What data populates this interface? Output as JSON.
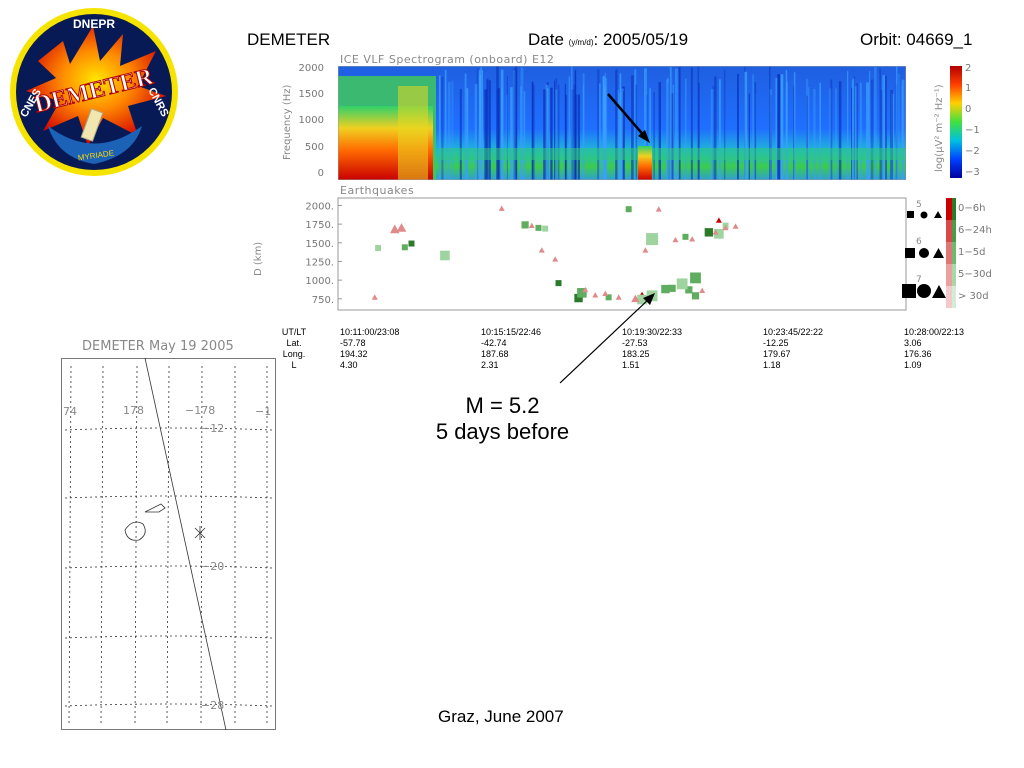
{
  "header": {
    "mission": "DEMETER",
    "date_label": "Date",
    "date_sub": "(y/m/d)",
    "date_value": ": 2005/05/19",
    "orbit": "Orbit: 04669_1"
  },
  "logo": {
    "top_text": "DNEPR",
    "main_text": "DEMETER",
    "left_text": "CNES",
    "right_text": "CNRS",
    "bottom_text": "MYRIADE"
  },
  "spectrogram": {
    "title": "ICE VLF Spectrogram (onboard) E12",
    "ylabel": "Frequency (Hz)",
    "yticks": [
      "2000",
      "1500",
      "1000",
      "500",
      "0"
    ],
    "colorbar_label": "log(µV² m⁻² Hz⁻¹)",
    "colorbar_ticks": [
      "2",
      "1",
      "0",
      "−1",
      "−2",
      "−3"
    ]
  },
  "chart_data": {
    "type": "scatter",
    "title": "Earthquakes",
    "ylabel": "D (km)",
    "ylim": [
      600,
      2100
    ],
    "yticks": [
      "2000.",
      "1750.",
      "1500.",
      "1250.",
      "1000.",
      "750."
    ],
    "x_unit": "minutes after 10:11:00 UT",
    "xlim": [
      0,
      17
    ],
    "series": [
      {
        "name": "0−6h",
        "color": "#cc0000",
        "points": [
          {
            "x": 9.1,
            "y": 790,
            "m": 5.2,
            "shape": "triangle"
          },
          {
            "x": 11.4,
            "y": 1800,
            "m": 5.0,
            "shape": "triangle"
          }
        ]
      },
      {
        "name": "6−24h",
        "color": "#2a7a2a",
        "points": [
          {
            "x": 2.2,
            "y": 1490,
            "m": 5.0,
            "shape": "square"
          },
          {
            "x": 6.6,
            "y": 960,
            "m": 5.0,
            "shape": "square"
          },
          {
            "x": 11.1,
            "y": 1640,
            "m": 5.2,
            "shape": "square"
          },
          {
            "x": 7.2,
            "y": 760,
            "m": 5.2,
            "shape": "square"
          }
        ]
      },
      {
        "name": "1−5d",
        "color": "#5fae5f",
        "points": [
          {
            "x": 2.0,
            "y": 1440,
            "m": 5.0,
            "shape": "square"
          },
          {
            "x": 5.6,
            "y": 1740,
            "m": 5.1,
            "shape": "square"
          },
          {
            "x": 6.0,
            "y": 1700,
            "m": 5.0,
            "shape": "square"
          },
          {
            "x": 7.3,
            "y": 830,
            "m": 5.3,
            "shape": "square"
          },
          {
            "x": 8.1,
            "y": 770,
            "m": 5.0,
            "shape": "square"
          },
          {
            "x": 9.8,
            "y": 880,
            "m": 5.2,
            "shape": "square"
          },
          {
            "x": 10.0,
            "y": 890,
            "m": 5.1,
            "shape": "square"
          },
          {
            "x": 10.5,
            "y": 870,
            "m": 5.1,
            "shape": "square"
          },
          {
            "x": 10.7,
            "y": 1030,
            "m": 5.4,
            "shape": "square"
          },
          {
            "x": 10.7,
            "y": 790,
            "m": 5.1,
            "shape": "square"
          },
          {
            "x": 10.4,
            "y": 1580,
            "m": 5.0,
            "shape": "square"
          },
          {
            "x": 8.7,
            "y": 1950,
            "m": 5.0,
            "shape": "square"
          }
        ]
      },
      {
        "name": "5−30d",
        "color": "#9fd39f",
        "points": [
          {
            "x": 1.2,
            "y": 1430,
            "m": 5.0,
            "shape": "square"
          },
          {
            "x": 3.2,
            "y": 1330,
            "m": 5.3,
            "shape": "square"
          },
          {
            "x": 6.2,
            "y": 1690,
            "m": 5.0,
            "shape": "square"
          },
          {
            "x": 9.1,
            "y": 740,
            "m": 5.3,
            "shape": "square"
          },
          {
            "x": 9.4,
            "y": 790,
            "m": 5.4,
            "shape": "square"
          },
          {
            "x": 9.4,
            "y": 1550,
            "m": 5.5,
            "shape": "square"
          },
          {
            "x": 10.3,
            "y": 950,
            "m": 5.4,
            "shape": "square"
          },
          {
            "x": 11.4,
            "y": 1620,
            "m": 5.3,
            "shape": "square"
          },
          {
            "x": 11.6,
            "y": 1730,
            "m": 5.0,
            "shape": "square"
          }
        ]
      },
      {
        "name": "> 30d",
        "color": "#e08a8a",
        "points": [
          {
            "x": 1.1,
            "y": 770,
            "m": 5.0,
            "shape": "triangle"
          },
          {
            "x": 1.7,
            "y": 1680,
            "m": 5.3,
            "shape": "triangle"
          },
          {
            "x": 1.9,
            "y": 1700,
            "m": 5.3,
            "shape": "triangle"
          },
          {
            "x": 4.9,
            "y": 1960,
            "m": 5.0,
            "shape": "triangle"
          },
          {
            "x": 5.8,
            "y": 1730,
            "m": 5.0,
            "shape": "triangle"
          },
          {
            "x": 6.1,
            "y": 1400,
            "m": 5.0,
            "shape": "triangle"
          },
          {
            "x": 6.5,
            "y": 1280,
            "m": 5.0,
            "shape": "triangle"
          },
          {
            "x": 7.4,
            "y": 870,
            "m": 5.0,
            "shape": "triangle"
          },
          {
            "x": 7.7,
            "y": 800,
            "m": 5.0,
            "shape": "triangle"
          },
          {
            "x": 8.0,
            "y": 820,
            "m": 5.0,
            "shape": "triangle"
          },
          {
            "x": 8.4,
            "y": 770,
            "m": 5.0,
            "shape": "triangle"
          },
          {
            "x": 8.9,
            "y": 750,
            "m": 5.2,
            "shape": "triangle"
          },
          {
            "x": 9.2,
            "y": 1400,
            "m": 5.0,
            "shape": "triangle"
          },
          {
            "x": 9.6,
            "y": 1950,
            "m": 5.0,
            "shape": "triangle"
          },
          {
            "x": 10.1,
            "y": 1540,
            "m": 5.0,
            "shape": "triangle"
          },
          {
            "x": 10.6,
            "y": 1550,
            "m": 5.0,
            "shape": "triangle"
          },
          {
            "x": 10.9,
            "y": 860,
            "m": 5.0,
            "shape": "triangle"
          },
          {
            "x": 11.3,
            "y": 1640,
            "m": 5.0,
            "shape": "triangle"
          },
          {
            "x": 11.6,
            "y": 1700,
            "m": 5.0,
            "shape": "triangle"
          },
          {
            "x": 11.9,
            "y": 1720,
            "m": 5.0,
            "shape": "triangle"
          }
        ]
      }
    ],
    "magnitude_legend": [
      "5",
      "6",
      "7"
    ],
    "age_legend": [
      "0−6h",
      "6−24h",
      "1−5d",
      "5−30d",
      "> 30d"
    ]
  },
  "orbit_info": {
    "row_labels": [
      "UT/LT",
      "Lat.",
      "Long.",
      "L"
    ],
    "columns": [
      [
        "10:11:00/23:08",
        "-57.78",
        "194.32",
        "4.30"
      ],
      [
        "10:15:15/22:46",
        "-42.74",
        "187.68",
        "2.31"
      ],
      [
        "10:19:30/22:33",
        "-27.53",
        "183.25",
        "1.51"
      ],
      [
        "10:23:45/22:22",
        "-12.25",
        "179.67",
        "1.18"
      ],
      [
        "10:28:00/22:13",
        "3.06",
        "176.36",
        "1.09"
      ]
    ]
  },
  "annotation": {
    "line1": "M = 5.2",
    "line2": "5 days before"
  },
  "map": {
    "title": "DEMETER May 19 2005",
    "lon_labels": [
      "74",
      "178",
      "−178",
      "−1"
    ],
    "lat_labels": [
      "−12",
      "−20",
      "−28"
    ]
  },
  "footer": "Graz, June 2007"
}
